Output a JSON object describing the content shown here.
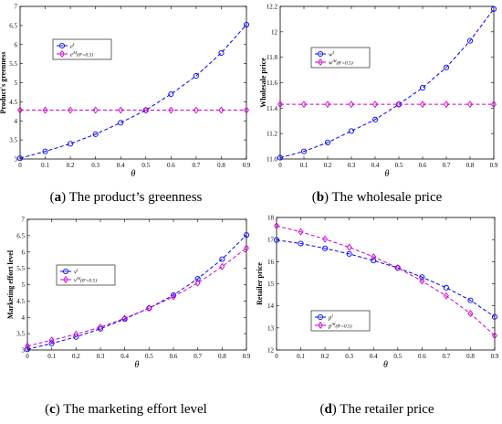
{
  "chart_data": [
    {
      "type": "line",
      "panel_label": "a",
      "caption": "The product’s greenness",
      "xlabel": "θ",
      "ylabel": "Product's greenness",
      "x": [
        0,
        0.1,
        0.2,
        0.3,
        0.4,
        0.5,
        0.6,
        0.7,
        0.8,
        0.9
      ],
      "xticks": [
        "0",
        "0.1",
        "0.2",
        "0.3",
        "0.4",
        "0.5",
        "0.6",
        "0.7",
        "0.8",
        "0.9"
      ],
      "ylim": [
        3,
        7
      ],
      "yticks": [
        "3",
        "3.5",
        "4",
        "4.5",
        "5",
        "5.5",
        "6",
        "6.5",
        "7"
      ],
      "legend_position": "top-left",
      "series": [
        {
          "name": "e^I",
          "legend_main": "e",
          "legend_sup": "I",
          "legend_extra": "",
          "color": "#0000ff",
          "marker": "circle",
          "values": [
            3.02,
            3.2,
            3.4,
            3.65,
            3.95,
            4.28,
            4.7,
            5.18,
            5.78,
            6.52
          ]
        },
        {
          "name": "e^AI(θ'=0.5)",
          "legend_main": "e",
          "legend_sup": "AI",
          "legend_extra": "(θ'=0.5)",
          "color": "#cc00cc",
          "marker": "diamond",
          "values": [
            4.28,
            4.28,
            4.28,
            4.28,
            4.28,
            4.28,
            4.28,
            4.28,
            4.28,
            4.28
          ]
        }
      ]
    },
    {
      "type": "line",
      "panel_label": "b",
      "caption": "The wholesale price",
      "xlabel": "θ",
      "ylabel": "Wholesale price",
      "x": [
        0,
        0.1,
        0.2,
        0.3,
        0.4,
        0.5,
        0.6,
        0.7,
        0.8,
        0.9
      ],
      "xticks": [
        "0",
        "0.1",
        "0.2",
        "0.3",
        "0.4",
        "0.5",
        "0.6",
        "0.7",
        "0.8",
        "0.9"
      ],
      "ylim": [
        11,
        12.2
      ],
      "yticks": [
        "11.0",
        "11.2",
        "11.4",
        "11.6",
        "11.8",
        "12",
        "12.2"
      ],
      "legend_position": "top-left",
      "series": [
        {
          "name": "w^I",
          "legend_main": "w",
          "legend_sup": "I",
          "legend_extra": "",
          "color": "#0000ff",
          "marker": "circle",
          "values": [
            11.01,
            11.06,
            11.13,
            11.22,
            11.31,
            11.43,
            11.56,
            11.72,
            11.93,
            12.18
          ]
        },
        {
          "name": "w^AI(θ'=0.5)",
          "legend_main": "w",
          "legend_sup": "AI",
          "legend_extra": "(θ'=0.5)",
          "color": "#cc00cc",
          "marker": "diamond",
          "values": [
            11.43,
            11.43,
            11.43,
            11.43,
            11.43,
            11.43,
            11.43,
            11.43,
            11.43,
            11.43
          ]
        }
      ]
    },
    {
      "type": "line",
      "panel_label": "c",
      "caption": "The marketing effort level",
      "xlabel": "θ",
      "ylabel": "Marketing effort level",
      "x": [
        0,
        0.1,
        0.2,
        0.3,
        0.4,
        0.5,
        0.6,
        0.7,
        0.8,
        0.9
      ],
      "xticks": [
        "0",
        "0.1",
        "0.2",
        "0.3",
        "0.4",
        "0.5",
        "0.6",
        "0.7",
        "0.8",
        "0.9"
      ],
      "ylim": [
        3,
        7
      ],
      "yticks": [
        "3",
        "3.5",
        "4",
        "4.5",
        "5",
        "5.5",
        "6",
        "6.5",
        "7"
      ],
      "legend_position": "top-left",
      "series": [
        {
          "name": "v^I",
          "legend_main": "v",
          "legend_sup": "I",
          "legend_extra": "",
          "color": "#0000ff",
          "marker": "circle",
          "values": [
            3.02,
            3.2,
            3.4,
            3.65,
            3.95,
            4.28,
            4.68,
            5.18,
            5.78,
            6.52
          ]
        },
        {
          "name": "v^AI(θ'=0.5)",
          "legend_main": "v",
          "legend_sup": "AI",
          "legend_extra": "(θ'=0.5)",
          "color": "#cc00cc",
          "marker": "diamond",
          "values": [
            3.12,
            3.3,
            3.48,
            3.7,
            3.97,
            4.28,
            4.63,
            5.05,
            5.55,
            6.12
          ]
        }
      ]
    },
    {
      "type": "line",
      "panel_label": "d",
      "caption": "The retailer price",
      "xlabel": "θ",
      "ylabel": "Retailer price",
      "x": [
        0,
        0.1,
        0.2,
        0.3,
        0.4,
        0.5,
        0.6,
        0.7,
        0.8,
        0.9
      ],
      "xticks": [
        "0",
        "0.1",
        "0.2",
        "0.3",
        "0.4",
        "0.5",
        "0.6",
        "0.7",
        "0.8",
        "0.9"
      ],
      "ylim": [
        12,
        18
      ],
      "yticks": [
        "12",
        "13",
        "14",
        "15",
        "16",
        "17",
        "18"
      ],
      "legend_position": "bottom-left",
      "series": [
        {
          "name": "p^I",
          "legend_main": "p",
          "legend_sup": "I",
          "legend_extra": "",
          "color": "#0000ff",
          "marker": "circle",
          "values": [
            16.98,
            16.82,
            16.6,
            16.35,
            16.05,
            15.72,
            15.3,
            14.82,
            14.25,
            13.5
          ]
        },
        {
          "name": "p^AI(θ'=0.5)",
          "legend_main": "p",
          "legend_sup": "AI",
          "legend_extra": "(θ'=0.5)",
          "color": "#cc00cc",
          "marker": "diamond",
          "values": [
            17.62,
            17.35,
            17.02,
            16.65,
            16.22,
            15.72,
            15.12,
            14.45,
            13.65,
            12.65
          ]
        }
      ]
    }
  ]
}
